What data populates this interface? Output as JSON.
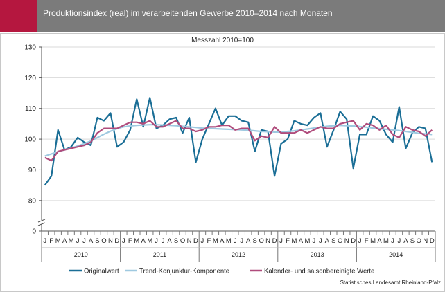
{
  "header": {
    "title": "Produktionsindex (real) im verarbeitenden Gewerbe 2010–2014 nach Monaten"
  },
  "colors": {
    "header_bg": "#7b7b7b",
    "accent": "#b5173f",
    "original": "#1a6e96",
    "trend": "#9fc9e0",
    "seasonal": "#b04c7c"
  },
  "footer": {
    "source": "Statistisches Landesamt Rheinland-Pfalz"
  },
  "chart_data": {
    "type": "line",
    "subtitle": "Messzahl 2010=100",
    "ylim": [
      0,
      130
    ],
    "axis_break": [
      0,
      75
    ],
    "y_ticks": [
      0,
      80,
      90,
      100,
      110,
      120,
      130
    ],
    "grid": true,
    "legend_position": "bottom",
    "month_labels": [
      "J",
      "F",
      "M",
      "A",
      "M",
      "J",
      "J",
      "A",
      "S",
      "O",
      "N",
      "D"
    ],
    "years": [
      "2010",
      "2011",
      "2012",
      "2013",
      "2014"
    ],
    "series": [
      {
        "name": "Originalwert",
        "values": [
          85.0,
          88.0,
          103.0,
          96.5,
          97.5,
          100.5,
          99.0,
          98.0,
          107.0,
          106.0,
          108.5,
          97.5,
          99.0,
          103.0,
          113.0,
          104.0,
          113.5,
          103.5,
          104.5,
          106.5,
          107.0,
          102.0,
          107.0,
          92.5,
          100.0,
          105.0,
          110.0,
          104.5,
          107.5,
          107.5,
          106.0,
          105.5,
          96.0,
          103.0,
          102.5,
          88.0,
          98.5,
          100.0,
          106.0,
          105.0,
          104.5,
          107.0,
          108.5,
          97.5,
          103.0,
          109.0,
          106.5,
          90.5,
          101.5,
          101.5,
          107.5,
          106.0,
          101.5,
          99.0,
          110.5,
          97.0,
          102.0,
          104.0,
          103.5,
          92.5
        ]
      },
      {
        "name": "Trend-Konjunktur-Komponente",
        "values": [
          94.5,
          95.2,
          95.9,
          96.5,
          97.1,
          97.8,
          98.5,
          99.4,
          100.5,
          101.6,
          102.6,
          103.4,
          104.0,
          104.3,
          104.5,
          104.6,
          104.7,
          104.7,
          104.6,
          104.5,
          104.4,
          104.2,
          104.0,
          103.8,
          103.6,
          103.5,
          103.4,
          103.3,
          103.2,
          103.1,
          103.0,
          102.9,
          102.7,
          102.5,
          102.4,
          102.3,
          102.3,
          102.5,
          102.7,
          103.0,
          103.3,
          103.6,
          103.9,
          104.2,
          104.4,
          104.5,
          104.4,
          104.3,
          104.1,
          103.9,
          103.6,
          103.4,
          103.2,
          103.0,
          102.8,
          102.5,
          102.2,
          101.9,
          101.7,
          101.5
        ]
      },
      {
        "name": "Kalender- und saisonbereinigte Werte",
        "values": [
          94.0,
          93.0,
          96.0,
          96.5,
          97.0,
          97.5,
          98.0,
          99.0,
          102.0,
          103.5,
          103.5,
          103.5,
          104.5,
          105.5,
          105.5,
          105.0,
          106.0,
          104.0,
          104.0,
          105.0,
          106.0,
          103.5,
          103.5,
          102.5,
          103.0,
          104.0,
          104.0,
          104.5,
          104.5,
          103.0,
          103.5,
          103.5,
          99.5,
          101.0,
          100.5,
          104.0,
          102.0,
          102.0,
          102.0,
          103.0,
          102.0,
          103.0,
          104.0,
          103.5,
          103.5,
          105.0,
          105.5,
          106.0,
          103.0,
          105.0,
          104.5,
          103.0,
          104.5,
          101.5,
          100.5,
          104.0,
          103.0,
          102.5,
          101.0,
          103.0
        ]
      }
    ]
  }
}
